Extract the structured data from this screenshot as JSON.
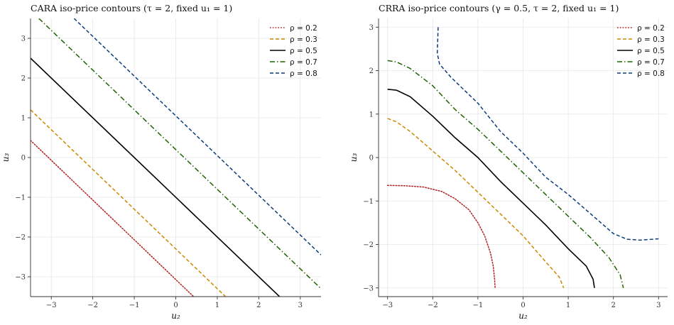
{
  "colors": {
    "rho_0.2": "#b22222",
    "rho_0.3": "#cc8800",
    "rho_0.5": "#000000",
    "rho_0.7": "#1f6400",
    "rho_0.8": "#0b3d7a"
  },
  "chart_data": [
    {
      "type": "line",
      "title": "CARA iso-price contours  (τ = 2, fixed u₁ = 1)",
      "xlabel": "u₂",
      "ylabel": "u₃",
      "xlim": [
        -3.5,
        3.5
      ],
      "ylim": [
        -3.5,
        3.5
      ],
      "xticks": [
        -3,
        -2,
        -1,
        0,
        1,
        2,
        3
      ],
      "yticks": [
        -3,
        -2,
        -1,
        0,
        1,
        2,
        3
      ],
      "xtick_labels": [
        "−3",
        "−2",
        "−1",
        "0",
        "1",
        "2",
        "3"
      ],
      "ytick_labels": [
        "−3",
        "−2",
        "−1",
        "0",
        "1",
        "2",
        "3"
      ],
      "grid": true,
      "legend": "top-right",
      "series": [
        {
          "name": "ρ = 0.2",
          "style": "dotted",
          "color_key": "rho_0.2",
          "x": [
            -3.5,
            0.43
          ],
          "y": [
            0.43,
            -3.5
          ]
        },
        {
          "name": "ρ = 0.3",
          "style": "dashed",
          "color_key": "rho_0.3",
          "x": [
            -3.5,
            1.2
          ],
          "y": [
            1.2,
            -3.5
          ]
        },
        {
          "name": "ρ = 0.5",
          "style": "solid",
          "color_key": "rho_0.5",
          "x": [
            -3.5,
            2.5
          ],
          "y": [
            2.5,
            -3.5
          ]
        },
        {
          "name": "ρ = 0.7",
          "style": "dashdot",
          "color_key": "rho_0.7",
          "x": [
            -3.3,
            3.5
          ],
          "y": [
            3.5,
            -3.3
          ]
        },
        {
          "name": "ρ = 0.8",
          "style": "dashed",
          "color_key": "rho_0.8",
          "x": [
            -2.45,
            3.5
          ],
          "y": [
            3.5,
            -2.45
          ]
        }
      ]
    },
    {
      "type": "line",
      "title": "CRRA iso-price contours  (γ = 0.5, τ = 2, fixed u₁ = 1)",
      "xlabel": "u₂",
      "ylabel": "u₃",
      "xlim": [
        -3.2,
        3.2
      ],
      "ylim": [
        -3.2,
        3.2
      ],
      "xticks": [
        -3,
        -2,
        -1,
        0,
        1,
        2,
        3
      ],
      "yticks": [
        -3,
        -2,
        -1,
        0,
        1,
        2,
        3
      ],
      "xtick_labels": [
        "−3",
        "−2",
        "−1",
        "0",
        "1",
        "2",
        "3"
      ],
      "ytick_labels": [
        "−3",
        "−2",
        "−1",
        "0",
        "1",
        "2",
        "3"
      ],
      "grid": true,
      "legend": "top-right",
      "series": [
        {
          "name": "ρ = 0.2",
          "style": "dotted",
          "color_key": "rho_0.2",
          "x": [
            -3.0,
            -2.6,
            -2.2,
            -1.8,
            -1.5,
            -1.2,
            -1.0,
            -0.85,
            -0.72,
            -0.66,
            -0.63,
            -0.62
          ],
          "y": [
            -0.64,
            -0.65,
            -0.68,
            -0.78,
            -0.95,
            -1.2,
            -1.5,
            -1.8,
            -2.2,
            -2.5,
            -2.8,
            -3.0
          ]
        },
        {
          "name": "ρ = 0.3",
          "style": "dashed",
          "color_key": "rho_0.3",
          "x": [
            -3.0,
            -2.8,
            -2.5,
            -2.0,
            -1.5,
            -1.0,
            -0.5,
            0.0,
            0.5,
            0.8,
            0.9
          ],
          "y": [
            0.9,
            0.82,
            0.6,
            0.15,
            -0.3,
            -0.8,
            -1.3,
            -1.8,
            -2.4,
            -2.75,
            -3.0
          ]
        },
        {
          "name": "ρ = 0.5",
          "style": "solid",
          "color_key": "rho_0.5",
          "x": [
            -3.0,
            -2.8,
            -2.5,
            -2.0,
            -1.5,
            -1.0,
            -0.5,
            0.0,
            0.5,
            1.0,
            1.4,
            1.55,
            1.58
          ],
          "y": [
            1.57,
            1.55,
            1.4,
            0.95,
            0.45,
            0.0,
            -0.55,
            -1.05,
            -1.55,
            -2.1,
            -2.5,
            -2.8,
            -3.0
          ]
        },
        {
          "name": "ρ = 0.7",
          "style": "dashdot",
          "color_key": "rho_0.7",
          "x": [
            -3.0,
            -2.8,
            -2.5,
            -2.0,
            -1.5,
            -1.0,
            -0.5,
            0.0,
            0.5,
            1.0,
            1.5,
            1.9,
            2.15,
            2.22
          ],
          "y": [
            2.23,
            2.2,
            2.05,
            1.65,
            1.1,
            0.65,
            0.15,
            -0.35,
            -0.85,
            -1.35,
            -1.85,
            -2.3,
            -2.7,
            -3.0
          ]
        },
        {
          "name": "ρ = 0.8",
          "style": "dashed",
          "color_key": "rho_0.8",
          "x": [
            -1.88,
            -1.9,
            -1.85,
            -1.6,
            -1.3,
            -1.0,
            -0.5,
            0.0,
            0.5,
            1.0,
            1.5,
            2.0,
            2.3,
            2.6,
            3.0
          ],
          "y": [
            3.0,
            2.4,
            2.15,
            1.85,
            1.55,
            1.25,
            0.6,
            0.1,
            -0.45,
            -0.85,
            -1.3,
            -1.75,
            -1.88,
            -1.9,
            -1.87
          ]
        }
      ]
    }
  ]
}
